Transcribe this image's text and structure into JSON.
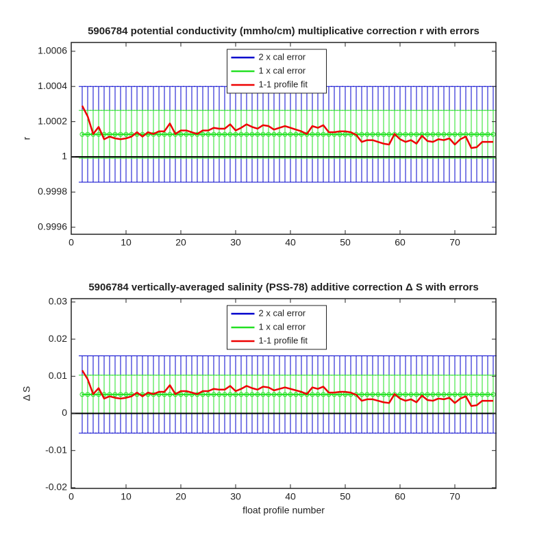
{
  "chart_data": [
    {
      "type": "line",
      "title": "5906784 potential conductivity (mmho/cm) multiplicative correction r with errors",
      "ylabel": "r",
      "legend": "north",
      "grid": false,
      "xlim": [
        0,
        77.5
      ],
      "xticks": [
        0,
        10,
        20,
        30,
        40,
        50,
        60,
        70
      ],
      "ylim": [
        0.99956,
        1.00065
      ],
      "yticks": [
        0.9996,
        0.9998,
        1,
        1.0002,
        1.0004,
        1.0006
      ],
      "hline": 1,
      "x": [
        2,
        3,
        4,
        5,
        6,
        7,
        8,
        9,
        10,
        11,
        12,
        13,
        14,
        15,
        16,
        17,
        18,
        19,
        20,
        21,
        22,
        23,
        24,
        25,
        26,
        27,
        28,
        29,
        30,
        31,
        32,
        33,
        34,
        35,
        36,
        37,
        38,
        39,
        40,
        41,
        42,
        43,
        44,
        45,
        46,
        47,
        48,
        49,
        50,
        51,
        52,
        53,
        54,
        55,
        56,
        57,
        58,
        59,
        60,
        61,
        62,
        63,
        64,
        65,
        66,
        67,
        68,
        69,
        70,
        71,
        72,
        73,
        74,
        75,
        76,
        77
      ],
      "series": [
        {
          "name": "2 x cal error",
          "color": "#0000cc",
          "value": 1.000128,
          "error": 0.000272
        },
        {
          "name": "1 x cal error",
          "color": "#22e022",
          "value": 1.000128,
          "error": 0.000136
        },
        {
          "name": "1-1 profile fit",
          "color": "#ee0000",
          "values": [
            1.00029,
            1.00023,
            1.00013,
            1.00017,
            1.0001,
            1.000115,
            1.000105,
            1.0001,
            1.000105,
            1.000115,
            1.00014,
            1.000115,
            1.00014,
            1.00013,
            1.000145,
            1.000145,
            1.00019,
            1.00013,
            1.00015,
            1.00015,
            1.00014,
            1.00013,
            1.00015,
            1.00015,
            1.000165,
            1.00016,
            1.00016,
            1.000185,
            1.00015,
            1.000165,
            1.000185,
            1.00017,
            1.00016,
            1.00018,
            1.000175,
            1.000155,
            1.000165,
            1.000175,
            1.000165,
            1.000155,
            1.000145,
            1.00013,
            1.000175,
            1.000165,
            1.00018,
            1.00014,
            1.00014,
            1.000145,
            1.000145,
            1.00014,
            1.000125,
            1.000085,
            1.000095,
            1.000095,
            1.000085,
            1.000075,
            1.00007,
            1.00013,
            1.0001,
            1.000085,
            1.000095,
            1.000075,
            1.00012,
            1.00009,
            1.000085,
            1.0001,
            1.000095,
            1.000105,
            1.00007,
            1.0001,
            1.000115,
            1.00005,
            1.000055,
            1.000085,
            1.000085,
            1.000085
          ]
        }
      ]
    },
    {
      "type": "line",
      "title": "5906784 vertically-averaged salinity (PSS-78) additive correction Δ S with errors",
      "ylabel": "Δ S",
      "xlabel": "float profile number",
      "legend": "north",
      "grid": false,
      "xlim": [
        0,
        77.5
      ],
      "xticks": [
        0,
        10,
        20,
        30,
        40,
        50,
        60,
        70
      ],
      "ylim": [
        -0.0202,
        0.0309
      ],
      "yticks": [
        -0.02,
        -0.01,
        0,
        0.01,
        0.02,
        0.03
      ],
      "hline": 0,
      "x": [
        2,
        3,
        4,
        5,
        6,
        7,
        8,
        9,
        10,
        11,
        12,
        13,
        14,
        15,
        16,
        17,
        18,
        19,
        20,
        21,
        22,
        23,
        24,
        25,
        26,
        27,
        28,
        29,
        30,
        31,
        32,
        33,
        34,
        35,
        36,
        37,
        38,
        39,
        40,
        41,
        42,
        43,
        44,
        45,
        46,
        47,
        48,
        49,
        50,
        51,
        52,
        53,
        54,
        55,
        56,
        57,
        58,
        59,
        60,
        61,
        62,
        63,
        64,
        65,
        66,
        67,
        68,
        69,
        70,
        71,
        72,
        73,
        74,
        75,
        76,
        77
      ],
      "series": [
        {
          "name": "2 x cal error",
          "color": "#0000cc",
          "value": 0.0051,
          "error": 0.0104
        },
        {
          "name": "1 x cal error",
          "color": "#22e022",
          "value": 0.0051,
          "error": 0.0052
        },
        {
          "name": "1-1 profile fit",
          "color": "#ee0000",
          "values": [
            0.0116,
            0.0092,
            0.0052,
            0.0068,
            0.004,
            0.0046,
            0.0042,
            0.004,
            0.0042,
            0.0046,
            0.0056,
            0.0046,
            0.0056,
            0.0052,
            0.0058,
            0.0058,
            0.0076,
            0.0052,
            0.006,
            0.006,
            0.0056,
            0.0052,
            0.006,
            0.006,
            0.0066,
            0.0064,
            0.0064,
            0.0074,
            0.006,
            0.0066,
            0.0074,
            0.0068,
            0.0064,
            0.0072,
            0.007,
            0.0062,
            0.0066,
            0.007,
            0.0066,
            0.0062,
            0.0058,
            0.0052,
            0.007,
            0.0066,
            0.0072,
            0.0056,
            0.0056,
            0.0058,
            0.0058,
            0.0056,
            0.005,
            0.0034,
            0.0038,
            0.0038,
            0.0034,
            0.003,
            0.0028,
            0.0052,
            0.004,
            0.0034,
            0.0038,
            0.003,
            0.0048,
            0.0036,
            0.0034,
            0.004,
            0.0038,
            0.0042,
            0.0028,
            0.004,
            0.0046,
            0.002,
            0.0022,
            0.0034,
            0.0034,
            0.0034
          ]
        }
      ]
    }
  ]
}
